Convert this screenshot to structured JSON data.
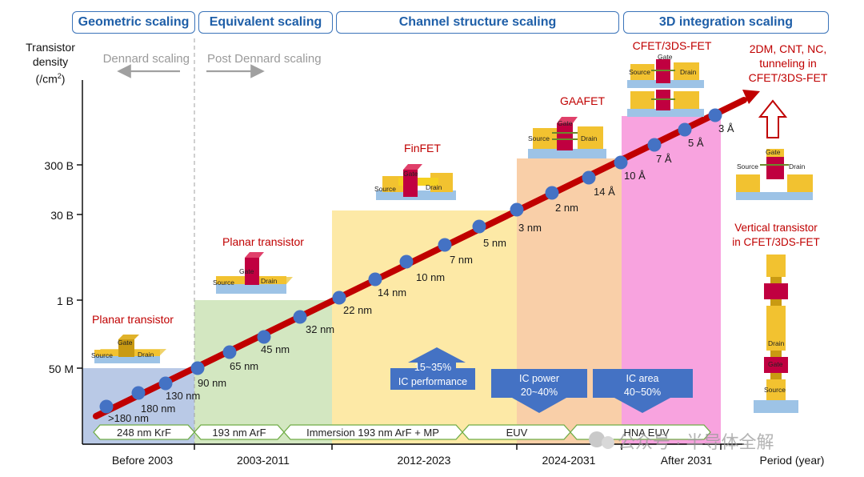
{
  "eras": [
    {
      "label": "Geometric scaling"
    },
    {
      "label": "Equivalent scaling"
    },
    {
      "label": "Channel structure scaling"
    },
    {
      "label": "3D integration scaling"
    }
  ],
  "y_axis": {
    "title_line1": "Transistor",
    "title_line2": "density",
    "title_line3": "(/cm",
    "title_sup": "2",
    "title_end": ")",
    "ticks": [
      "50 M",
      "1 B",
      "30 B",
      "300 B"
    ]
  },
  "dennard": {
    "left": "Dennard scaling",
    "right": "Post Dennard scaling"
  },
  "x_axis": {
    "periods": [
      "Before 2003",
      "2003-2011",
      "2012-2023",
      "2024-2031",
      "After 2031"
    ],
    "title": "Period (year)"
  },
  "litho": [
    {
      "label": "248 nm KrF"
    },
    {
      "label": "193 nm ArF"
    },
    {
      "label": "Immersion 193 nm ArF + MP"
    },
    {
      "label": "EUV"
    },
    {
      "label": "HNA EUV"
    }
  ],
  "nodes": [
    ">180 nm",
    "180 nm",
    "130 nm",
    "90 nm",
    "65 nm",
    "45 nm",
    "32 nm",
    "22 nm",
    "14 nm",
    "10 nm",
    "7 nm",
    "5 nm",
    "3 nm",
    "2 nm",
    "14 Å",
    "10 Å",
    "7 Å",
    "5 Å",
    "3 Å"
  ],
  "devices": {
    "planar1": "Planar transistor",
    "planar2": "Planar transistor",
    "finfet": "FinFET",
    "gaafet": "GAAFET",
    "cfet": "CFET/3DS-FET",
    "future": [
      "2DM, CNT, NC,",
      "tunneling in",
      "CFET/3DS-FET"
    ],
    "vertical": [
      "Vertical transistor",
      "in CFET/3DS-FET"
    ]
  },
  "device_labels": {
    "source": "Source",
    "drain": "Drain",
    "gate": "Gate"
  },
  "benefits": {
    "performance": [
      "15~35%",
      "IC performance"
    ],
    "power": [
      "IC power",
      "20~40%"
    ],
    "area": [
      "IC area",
      "40~50%"
    ]
  },
  "watermark": "公众号 · 半导体全解",
  "colors": {
    "era_blue": "#3a73b9",
    "region_blue": "#b9c9e6",
    "region_green": "#d3e7c1",
    "region_yellow": "#fde9a6",
    "region_orange": "#f9cfa8",
    "region_pink": "#f8a3df",
    "trend_red": "#c00000",
    "node_blue": "#4472c4",
    "device_red": "#c00000"
  }
}
